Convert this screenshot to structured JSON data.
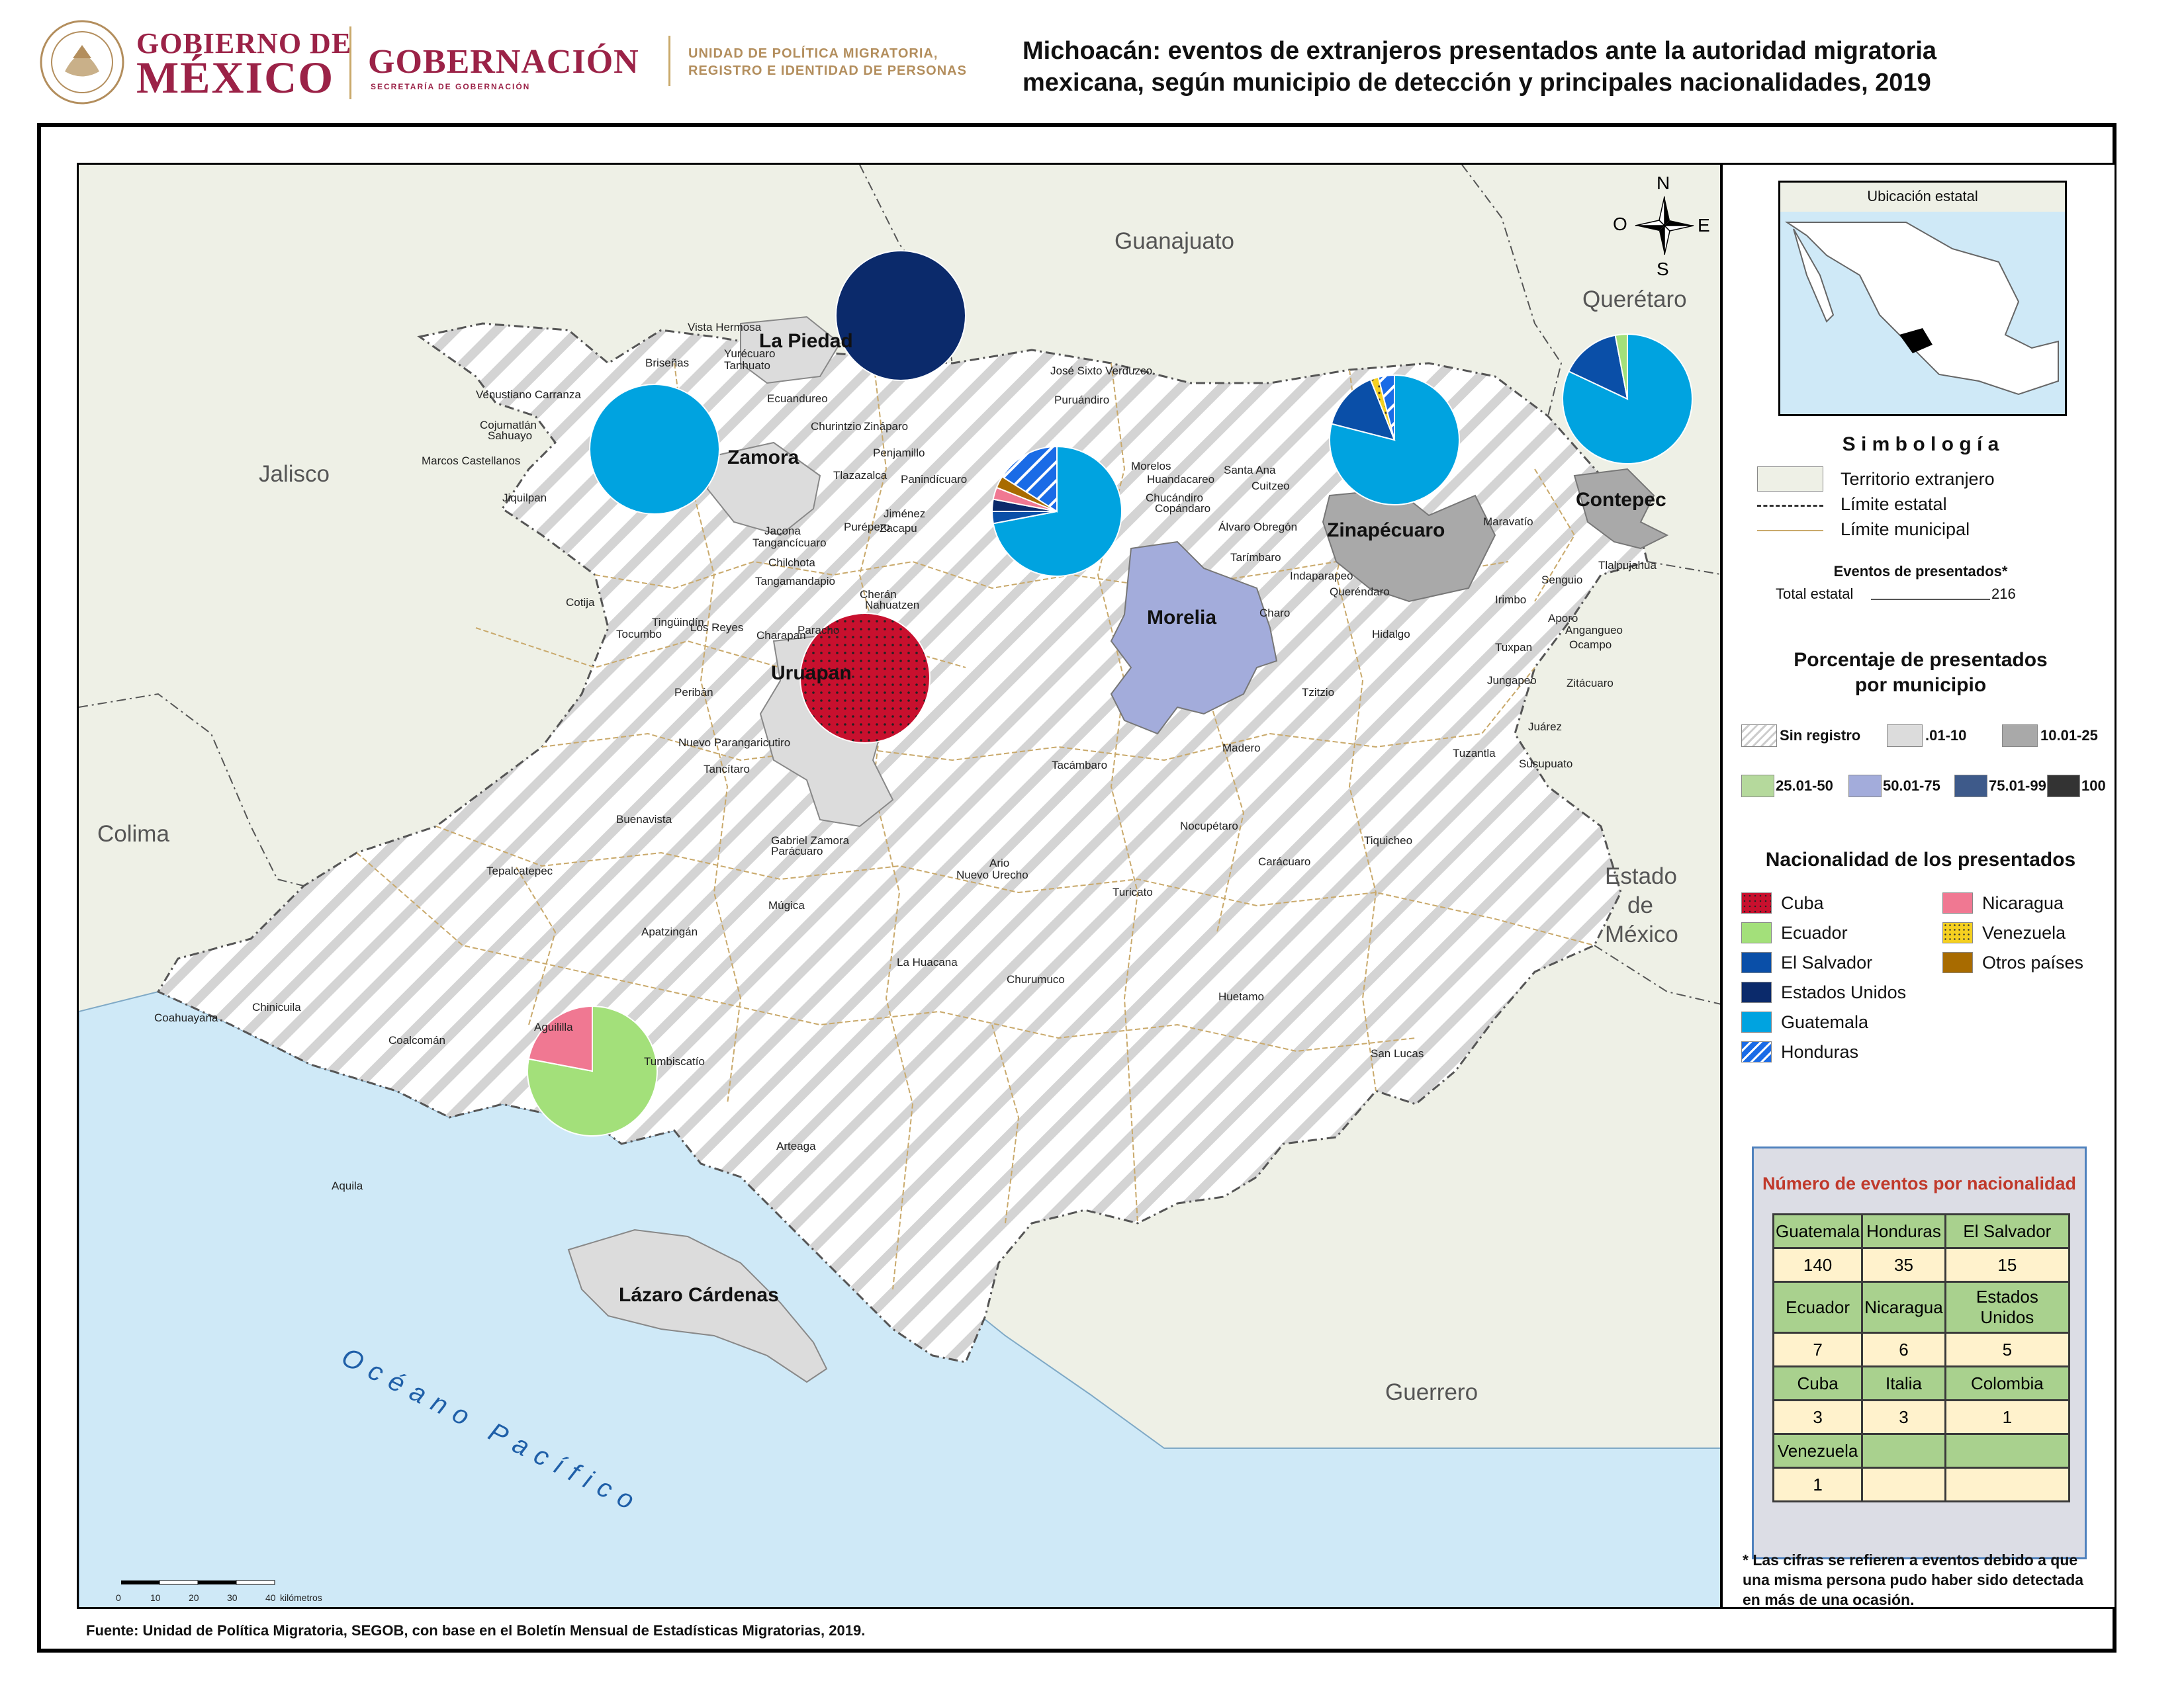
{
  "header": {
    "gob_line1": "GOBIERNO DE",
    "gob_line2": "MÉXICO",
    "gobernacion": "GOBERNACIÓN",
    "gobernacion_sub": "SECRETARÍA DE GOBERNACIÓN",
    "unidad_line1": "UNIDAD DE POLÍTICA MIGRATORIA,",
    "unidad_line2": "REGISTRO E IDENTIDAD DE PERSONAS",
    "title_line1": "Michoacán: eventos de extranjeros presentados ante la autoridad migratoria",
    "title_line2": "mexicana, según municipio de detección y principales nacionalidades, 2019"
  },
  "map": {
    "states": {
      "guanajuato": "Guanajuato",
      "queretaro": "Querétaro",
      "jalisco": "Jalisco",
      "colima": "Colima",
      "estado_mexico_1": "Estado",
      "estado_mexico_2": "de",
      "estado_mexico_3": "México",
      "guerrero": "Guerrero"
    },
    "ocean": "Océano Pacífico",
    "compass": {
      "n": "N",
      "s": "S",
      "e": "E",
      "o": "O"
    },
    "highlighted_municipalities": [
      "La Piedad",
      "Zamora",
      "Morelia",
      "Uruapan",
      "Zinapécuaro",
      "Contepec",
      "Lázaro Cárdenas"
    ],
    "municipality_labels": [
      "Vista Hermosa",
      "Yurécuaro",
      "Tanhuato",
      "Briseñas",
      "Venustiano Carranza",
      "Cojumatlán",
      "Sahuayo",
      "Marcos Castellanos",
      "Jiquilpan",
      "Ecuandureo",
      "Churintzio",
      "Zináparo",
      "Penjamillo",
      "Tlazazalca",
      "Panindícuaro",
      "José Sixto Verduzco",
      "Puruándiro",
      "Morelos",
      "Huandacareo",
      "Chucándiro",
      "Copándaro",
      "Santa Ana",
      "Cuitzeo",
      "Álvaro Obregón",
      "Tarímbaro",
      "Indaparapeo",
      "Queréndaro",
      "Charo",
      "Hidalgo",
      "Maravatío",
      "Tlalpujahua",
      "Senguio",
      "Irimbo",
      "Aporo",
      "Angangueo",
      "Ocampo",
      "Tuxpan",
      "Jungapeo",
      "Zitácuaro",
      "Juárez",
      "Susupuato",
      "Tuzantla",
      "Tiquicheo",
      "Tzitzio",
      "Madero",
      "Nocupétaro",
      "Carácuaro",
      "Tacámbaro",
      "Turicato",
      "Huetamo",
      "San Lucas",
      "Churumuco",
      "La Huacana",
      "Ario",
      "Nuevo Urecho",
      "Jacona",
      "Tangancícuaro",
      "Chilchota",
      "Purépero",
      "Jiménez",
      "Zacapu",
      "Tangamandapio",
      "Cherán",
      "Nahuatzen",
      "Cotija",
      "Tingüindín",
      "Tocumbo",
      "Los Reyes",
      "Charapan",
      "Paracho",
      "Peribán",
      "Nuevo Parangaricutiro",
      "Tancítaro",
      "Buenavista",
      "Gabriel Zamora",
      "Parácuaro",
      "Múgica",
      "Tepalcatepec",
      "Apatzingán",
      "Coahuayana",
      "Chinicuila",
      "Coalcomán",
      "Aguililla",
      "Tumbiscatío",
      "Arteaga",
      "Aquila"
    ],
    "scale_ticks": [
      "0",
      "10",
      "20",
      "30",
      "40"
    ],
    "scale_unit": "kilómetros",
    "pies": [
      {
        "municipality": "La Piedad",
        "slices": [
          {
            "nationality": "Estados Unidos",
            "value": 1
          }
        ]
      },
      {
        "municipality": "Zamora",
        "slices": [
          {
            "nationality": "Guatemala",
            "value": 1
          }
        ]
      },
      {
        "municipality": "Uruapan",
        "slices": [
          {
            "nationality": "Cuba",
            "value": 1
          }
        ]
      },
      {
        "municipality": "Morelia",
        "slices": [
          {
            "nationality": "Guatemala",
            "value": 0.72
          },
          {
            "nationality": "El Salvador",
            "value": 0.03
          },
          {
            "nationality": "Estados Unidos",
            "value": 0.03
          },
          {
            "nationality": "Nicaragua",
            "value": 0.03
          },
          {
            "nationality": "Otros países",
            "value": 0.03
          },
          {
            "nationality": "Honduras",
            "value": 0.16
          }
        ]
      },
      {
        "municipality": "Zinapécuaro",
        "slices": [
          {
            "nationality": "Guatemala",
            "value": 0.79
          },
          {
            "nationality": "El Salvador",
            "value": 0.15
          },
          {
            "nationality": "Venezuela",
            "value": 0.02
          },
          {
            "nationality": "Honduras",
            "value": 0.04
          }
        ]
      },
      {
        "municipality": "Contepec",
        "slices": [
          {
            "nationality": "Guatemala",
            "value": 0.82
          },
          {
            "nationality": "El Salvador",
            "value": 0.15
          },
          {
            "nationality": "Ecuador",
            "value": 0.03
          }
        ]
      },
      {
        "municipality": "Lázaro Cárdenas",
        "slices": [
          {
            "nationality": "Ecuador",
            "value": 0.78
          },
          {
            "nationality": "Nicaragua",
            "value": 0.22
          }
        ]
      }
    ]
  },
  "legend": {
    "inset_title": "Ubicación estatal",
    "symbology_title": "S i m b o l o g í a",
    "territorio": "Territorio extranjero",
    "limite_estatal": "Límite estatal",
    "limite_municipal": "Límite municipal",
    "eventos_label": "Eventos de presentados*",
    "total_label": "Total estatal",
    "total_value": "216",
    "pct_title_1": "Porcentaje de presentados",
    "pct_title_2": "por municipio",
    "pct_classes": [
      {
        "label": "Sin registro",
        "color": "hatch"
      },
      {
        "label": ".01-10",
        "color": "#dcdcdc"
      },
      {
        "label": "10.01-25",
        "color": "#a9a9a9"
      },
      {
        "label": "25.01-50",
        "color": "#b5d99c"
      },
      {
        "label": "50.01-75",
        "color": "#a3acdb"
      },
      {
        "label": "75.01-99",
        "color": "#3e5a8a"
      },
      {
        "label": "100",
        "color": "#333333"
      }
    ],
    "nat_title": "Nacionalidad de los presentados",
    "nationalities": [
      {
        "label": "Cuba",
        "color": "#c8102e"
      },
      {
        "label": "Ecuador",
        "color": "#a3e07a"
      },
      {
        "label": "El Salvador",
        "color": "#0a4fa8"
      },
      {
        "label": "Estados Unidos",
        "color": "#0b2a6b"
      },
      {
        "label": "Guatemala",
        "color": "#00a3e0"
      },
      {
        "label": "Honduras",
        "color": "#1a6be6"
      },
      {
        "label": "Nicaragua",
        "color": "#f07892"
      },
      {
        "label": "Venezuela",
        "color": "#f5d020"
      },
      {
        "label": "Otros países",
        "color": "#a86b00"
      }
    ],
    "table_title": "Número de eventos por nacionalidad",
    "table_rows": [
      {
        "type": "hdr",
        "cells": [
          "Guatemala",
          "Honduras",
          "El Salvador"
        ]
      },
      {
        "type": "val",
        "cells": [
          "140",
          "35",
          "15"
        ]
      },
      {
        "type": "hdr",
        "cells": [
          "Ecuador",
          "Nicaragua",
          "Estados Unidos"
        ]
      },
      {
        "type": "val",
        "cells": [
          "7",
          "6",
          "5"
        ]
      },
      {
        "type": "hdr",
        "cells": [
          "Cuba",
          "Italia",
          "Colombia"
        ]
      },
      {
        "type": "val",
        "cells": [
          "3",
          "3",
          "1"
        ]
      },
      {
        "type": "hdr",
        "cells": [
          "Venezuela",
          "",
          ""
        ]
      },
      {
        "type": "val",
        "cells": [
          "1",
          "",
          ""
        ]
      }
    ],
    "footnote": "* Las cifras se refieren a eventos debido a que una misma persona pudo haber sido detectada en más de una ocasión."
  },
  "source": "Fuente: Unidad de Política Migratoria, SEGOB, con base en el Boletín Mensual de Estadísticas Migratorias, 2019."
}
